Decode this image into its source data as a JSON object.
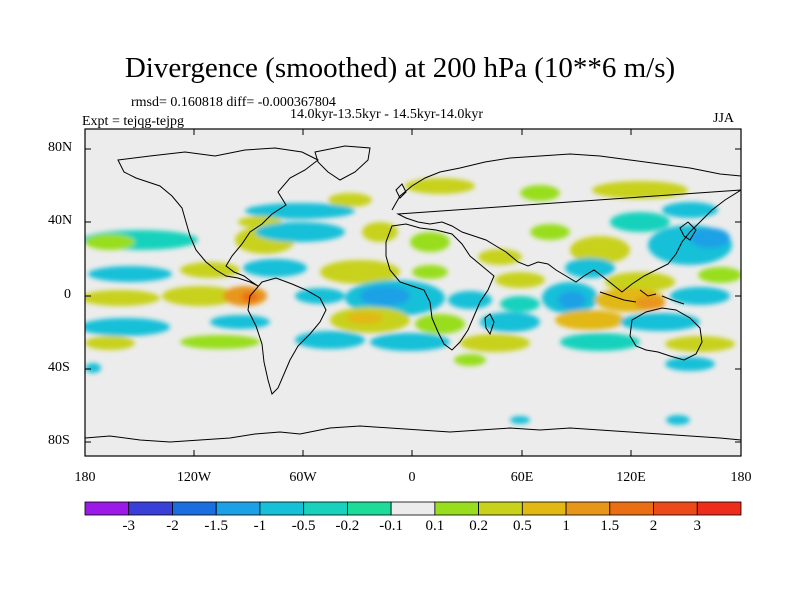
{
  "title": "Divergence (smoothed) at 200 hPa (10**6 m/s)",
  "stats": "rmsd= 0.160818 diff= -0.000367804",
  "period": "14.0kyr-13.5kyr - 14.5kyr-14.0kyr",
  "expt": "Expt = tejqg-tejpg",
  "season": "JJA",
  "y_ticks": [
    "80N",
    "40N",
    "0",
    "40S",
    "80S"
  ],
  "x_ticks": [
    "180",
    "120W",
    "60W",
    "0",
    "60E",
    "120E",
    "180"
  ],
  "colorbar": {
    "labels": [
      "-3",
      "-2",
      "-1.5",
      "-1",
      "-0.5",
      "-0.2",
      "-0.1",
      "0.1",
      "0.2",
      "0.5",
      "1",
      "1.5",
      "2",
      "3"
    ],
    "colors": [
      "#9b1ae8",
      "#3a3fd8",
      "#1a6ee0",
      "#1ca0e6",
      "#16c0d8",
      "#19d2bd",
      "#1ddc9a",
      "#ececec",
      "#98de1e",
      "#c8d21a",
      "#e2b812",
      "#e8961a",
      "#ea6e14",
      "#ec4a18",
      "#ee2c1c"
    ]
  },
  "map": {
    "background": "#ececec",
    "lon_range": [
      -180,
      180
    ],
    "lat_range": [
      -90,
      90
    ]
  }
}
